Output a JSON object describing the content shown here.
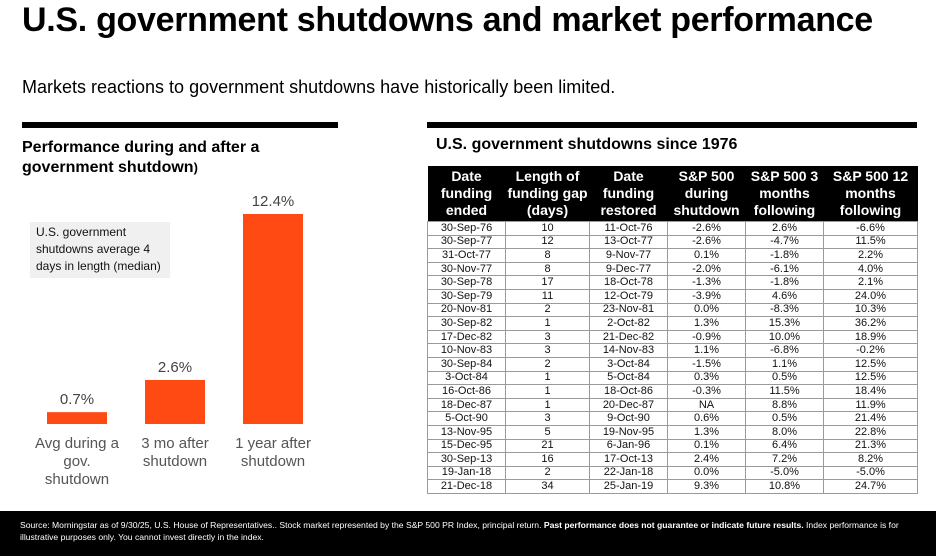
{
  "title": "U.S. government shutdowns and market performance",
  "subtitle": "Markets reactions to government shutdowns have historically been limited.",
  "left_panel": {
    "heading": "Performance during and after a government shutdown",
    "heading_suffix": ")",
    "note": "U.S. government shutdowns average 4 days in length (median)"
  },
  "chart_data": {
    "type": "bar",
    "title": "Performance during and after a government shutdown",
    "categories": [
      "Avg during a gov. shutdown",
      "3 mo after shutdown",
      "1 year after shutdown"
    ],
    "values": [
      0.7,
      2.6,
      12.4
    ],
    "value_labels": [
      "0.7%",
      "2.6%",
      "12.4%"
    ],
    "xlabel": "",
    "ylabel": "",
    "ylim": [
      0,
      12.4
    ],
    "grid": false,
    "bar_color": "#ff4a14"
  },
  "right_panel": {
    "heading": "U.S. government shutdowns since 1976",
    "columns": [
      "Date funding ended",
      "Length of funding gap (days)",
      "Date funding restored",
      "S&P 500 during shutdown",
      "S&P 500 3 months following",
      "S&P 500 12 months following"
    ],
    "rows": [
      [
        "30-Sep-76",
        "10",
        "11-Oct-76",
        "-2.6%",
        "2.6%",
        "-6.6%"
      ],
      [
        "30-Sep-77",
        "12",
        "13-Oct-77",
        "-2.6%",
        "-4.7%",
        "11.5%"
      ],
      [
        "31-Oct-77",
        "8",
        "9-Nov-77",
        "0.1%",
        "-1.8%",
        "2.2%"
      ],
      [
        "30-Nov-77",
        "8",
        "9-Dec-77",
        "-2.0%",
        "-6.1%",
        "4.0%"
      ],
      [
        "30-Sep-78",
        "17",
        "18-Oct-78",
        "-1.3%",
        "-1.8%",
        "2.1%"
      ],
      [
        "30-Sep-79",
        "11",
        "12-Oct-79",
        "-3.9%",
        "4.6%",
        "24.0%"
      ],
      [
        "20-Nov-81",
        "2",
        "23-Nov-81",
        "0.0%",
        "-8.3%",
        "10.3%"
      ],
      [
        "30-Sep-82",
        "1",
        "2-Oct-82",
        "1.3%",
        "15.3%",
        "36.2%"
      ],
      [
        "17-Dec-82",
        "3",
        "21-Dec-82",
        "-0.9%",
        "10.0%",
        "18.9%"
      ],
      [
        "10-Nov-83",
        "3",
        "14-Nov-83",
        "1.1%",
        "-6.8%",
        "-0.2%"
      ],
      [
        "30-Sep-84",
        "2",
        "3-Oct-84",
        "-1.5%",
        "1.1%",
        "12.5%"
      ],
      [
        "3-Oct-84",
        "1",
        "5-Oct-84",
        "0.3%",
        "0.5%",
        "12.5%"
      ],
      [
        "16-Oct-86",
        "1",
        "18-Oct-86",
        "-0.3%",
        "11.5%",
        "18.4%"
      ],
      [
        "18-Dec-87",
        "1",
        "20-Dec-87",
        "NA",
        "8.8%",
        "11.9%"
      ],
      [
        "5-Oct-90",
        "3",
        "9-Oct-90",
        "0.6%",
        "0.5%",
        "21.4%"
      ],
      [
        "13-Nov-95",
        "5",
        "19-Nov-95",
        "1.3%",
        "8.0%",
        "22.8%"
      ],
      [
        "15-Dec-95",
        "21",
        "6-Jan-96",
        "0.1%",
        "6.4%",
        "21.3%"
      ],
      [
        "30-Sep-13",
        "16",
        "17-Oct-13",
        "2.4%",
        "7.2%",
        "8.2%"
      ],
      [
        "19-Jan-18",
        "2",
        "22-Jan-18",
        "0.0%",
        "-5.0%",
        "-5.0%"
      ],
      [
        "21-Dec-18",
        "34",
        "25-Jan-19",
        "9.3%",
        "10.8%",
        "24.7%"
      ]
    ]
  },
  "footer": {
    "text_pre": "Source: Morningstar as of 9/30/25, U.S. House of Representatives.. Stock market represented by the S&P 500 PR Index, principal return. ",
    "text_bold": "Past performance does not guarantee or indicate future results.",
    "text_post": " Index performance is for illustrative purposes only. You cannot invest directly in the index."
  }
}
